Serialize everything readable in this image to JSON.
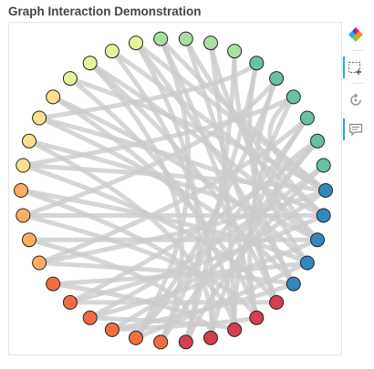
{
  "title": "Graph Interaction Demonstration",
  "toolbar": {
    "tools": [
      {
        "name": "bokeh-logo",
        "active": false
      },
      {
        "name": "box-select",
        "active": true
      },
      {
        "name": "reset",
        "active": false
      },
      {
        "name": "hover",
        "active": true
      }
    ]
  },
  "colors": {
    "edge": "#cccccc",
    "node_outline": "#222222",
    "palette": [
      "#9e0142",
      "#d53e4f",
      "#f46d43",
      "#fdae61",
      "#fee08b",
      "#e6f598",
      "#abdda4",
      "#66c2a5",
      "#3288bd"
    ]
  },
  "chart_data": {
    "type": "network",
    "layout": "circular",
    "node_count": 38,
    "node_colors": [
      "#3288bd",
      "#3288bd",
      "#3288bd",
      "#3288bd",
      "#3288bd",
      "#d53e4f",
      "#d53e4f",
      "#d53e4f",
      "#d53e4f",
      "#d53e4f",
      "#f46d43",
      "#f46d43",
      "#f46d43",
      "#f46d43",
      "#f46d43",
      "#f46d43",
      "#fdae61",
      "#fdae61",
      "#fdae61",
      "#fdae61",
      "#fee08b",
      "#fee08b",
      "#fee08b",
      "#fee08b",
      "#e6f598",
      "#e6f598",
      "#e6f598",
      "#e6f598",
      "#abdda4",
      "#abdda4",
      "#abdda4",
      "#abdda4",
      "#66c2a5",
      "#66c2a5",
      "#66c2a5",
      "#66c2a5",
      "#66c2a5",
      "#66c2a5"
    ],
    "edges": [
      [
        0,
        28
      ],
      [
        0,
        24
      ],
      [
        0,
        20
      ],
      [
        0,
        16
      ],
      [
        0,
        12
      ],
      [
        0,
        27
      ],
      [
        1,
        26
      ],
      [
        1,
        22
      ],
      [
        1,
        18
      ],
      [
        1,
        14
      ],
      [
        1,
        29
      ],
      [
        2,
        25
      ],
      [
        2,
        21
      ],
      [
        2,
        17
      ],
      [
        2,
        13
      ],
      [
        2,
        30
      ],
      [
        3,
        23
      ],
      [
        3,
        19
      ],
      [
        3,
        15
      ],
      [
        3,
        11
      ],
      [
        3,
        31
      ],
      [
        4,
        27
      ],
      [
        4,
        22
      ],
      [
        4,
        16
      ],
      [
        4,
        32
      ],
      [
        4,
        12
      ],
      [
        5,
        29
      ],
      [
        5,
        25
      ],
      [
        5,
        20
      ],
      [
        5,
        14
      ],
      [
        5,
        33
      ],
      [
        6,
        28
      ],
      [
        6,
        23
      ],
      [
        6,
        18
      ],
      [
        6,
        34
      ],
      [
        6,
        12
      ],
      [
        7,
        30
      ],
      [
        7,
        24
      ],
      [
        7,
        19
      ],
      [
        7,
        35
      ],
      [
        7,
        13
      ],
      [
        8,
        26
      ],
      [
        8,
        21
      ],
      [
        8,
        36
      ],
      [
        8,
        15
      ],
      [
        9,
        31
      ],
      [
        9,
        27
      ],
      [
        9,
        37
      ],
      [
        9,
        17
      ],
      [
        10,
        32
      ],
      [
        10,
        25
      ],
      [
        10,
        36
      ],
      [
        11,
        33
      ],
      [
        11,
        28
      ],
      [
        11,
        35
      ],
      [
        36,
        14
      ],
      [
        35,
        16
      ],
      [
        37,
        13
      ],
      [
        34,
        20
      ],
      [
        33,
        18
      ],
      [
        32,
        22
      ],
      [
        0,
        34
      ],
      [
        2,
        36
      ]
    ]
  }
}
